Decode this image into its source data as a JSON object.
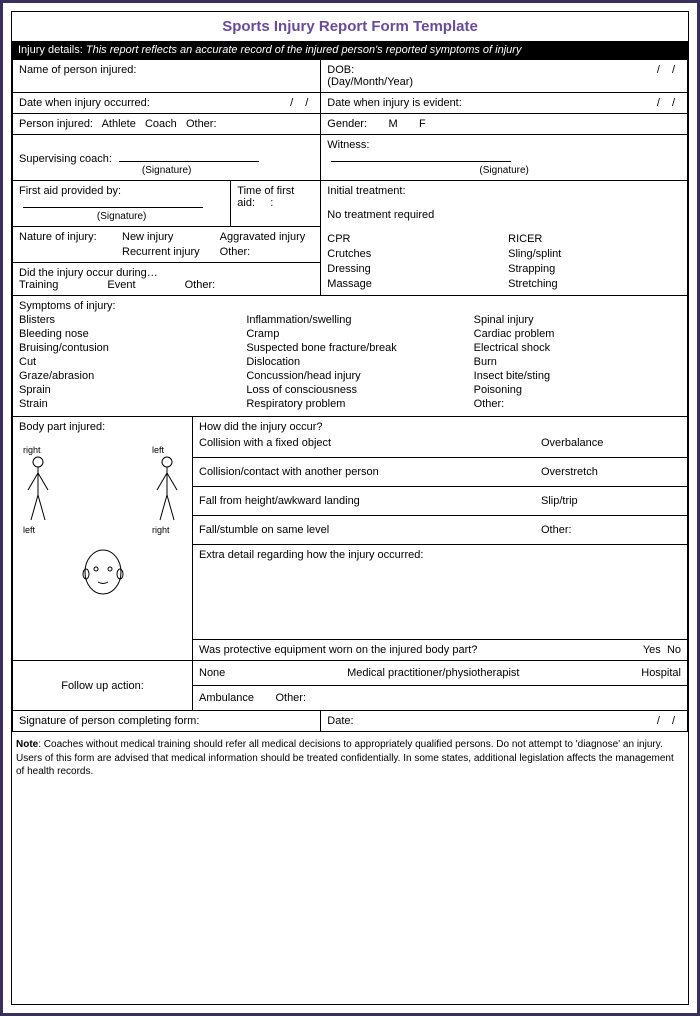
{
  "title": "Sports Injury Report Form Template",
  "header": {
    "label": "Injury details:",
    "text": "This report reflects an accurate record of the injured person's reported symptoms of injury"
  },
  "name": {
    "label": "Name of person injured:"
  },
  "dob": {
    "label": "DOB:",
    "sub": "(Day/Month/Year)"
  },
  "date_occurred": {
    "label": "Date when injury occurred:"
  },
  "date_evident": {
    "label": "Date when injury is evident:"
  },
  "person_type": {
    "label": "Person injured:",
    "opts": [
      "Athlete",
      "Coach",
      "Other:"
    ]
  },
  "gender": {
    "label": "Gender:",
    "opts": [
      "M",
      "F"
    ]
  },
  "coach": {
    "label": "Supervising coach:",
    "sig": "(Signature)"
  },
  "witness": {
    "label": "Witness:",
    "sig": "(Signature)"
  },
  "firstaid": {
    "label": "First aid provided by:",
    "sig": "(Signature)"
  },
  "time": {
    "label": "Time of first aid:"
  },
  "treatment": {
    "label": "Initial treatment:",
    "none": "No treatment required",
    "opts": [
      "CPR",
      "RICER",
      "Crutches",
      "Sling/splint",
      "Dressing",
      "Strapping",
      "Massage",
      "Stretching"
    ]
  },
  "nature": {
    "label": "Nature of injury:",
    "opts": [
      "New injury",
      "Aggravated injury",
      "Recurrent injury",
      "Other:"
    ]
  },
  "during": {
    "label": "Did the injury occur during…",
    "opts": [
      "Training",
      "Event",
      "Other:"
    ]
  },
  "symptoms": {
    "label": "Symptoms of injury:",
    "col1": [
      "Blisters",
      "Bleeding nose",
      "Bruising/contusion",
      "Cut",
      "Graze/abrasion",
      "Sprain",
      "Strain"
    ],
    "col2": [
      "Inflammation/swelling",
      "Cramp",
      "Suspected bone fracture/break",
      "Dislocation",
      "Concussion/head injury",
      "Loss of consciousness",
      "Respiratory problem"
    ],
    "col3": [
      "Spinal injury",
      "Cardiac problem",
      "Electrical shock",
      "Burn",
      "Insect bite/sting",
      "Poisoning",
      "Other:"
    ]
  },
  "bodypart": {
    "label": "Body part injured:",
    "rlabel": "right",
    "llabel": "left"
  },
  "how": {
    "label": "How did the injury occur?",
    "rows": [
      [
        "Collision with a fixed object",
        "Overbalance"
      ],
      [
        "Collision/contact with another person",
        "Overstretch"
      ],
      [
        "Fall from height/awkward landing",
        "Slip/trip"
      ],
      [
        "Fall/stumble on same level",
        "Other:"
      ]
    ],
    "extra": "Extra detail regarding how the injury occurred:",
    "protective": {
      "label": "Was protective equipment worn on the injured body part?",
      "yes": "Yes",
      "no": "No"
    }
  },
  "followup": {
    "label": "Follow up action:",
    "row1": [
      "None",
      "Medical practitioner/physiotherapist",
      "Hospital"
    ],
    "row2": [
      "Ambulance",
      "Other:"
    ]
  },
  "sig_complete": "Signature of person completing form:",
  "date_complete": "Date:",
  "note": {
    "bold": "Note",
    "text": ": Coaches without medical training should refer all medical decisions to appropriately qualified persons. Do not attempt to 'diagnose' an injury. Users of this form are advised that medical information should be treated confidentially. In some states, additional legislation affects the management of health records."
  }
}
